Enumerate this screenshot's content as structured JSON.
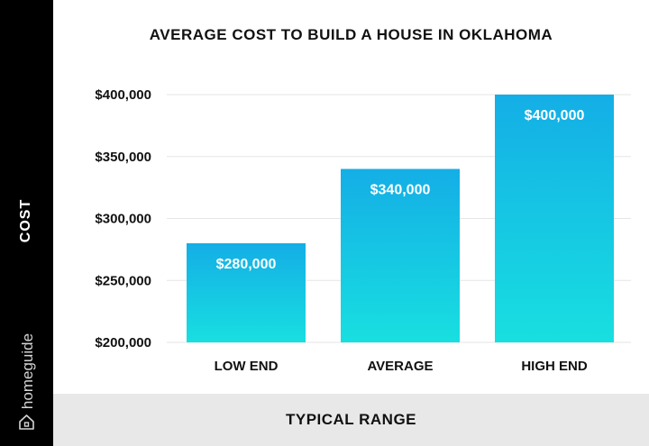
{
  "brand": {
    "name": "homeguide",
    "icon": "house-icon"
  },
  "colors": {
    "bar_top": "#14aee6",
    "bar_bottom": "#18dfe0",
    "sidebar": "#000000",
    "footer": "#e8e8e8"
  },
  "chart_data": {
    "type": "bar",
    "title": "AVERAGE COST TO BUILD A HOUSE IN OKLAHOMA",
    "xlabel": "TYPICAL RANGE",
    "ylabel": "COST",
    "categories": [
      "LOW END",
      "AVERAGE",
      "HIGH END"
    ],
    "values": [
      280000,
      340000,
      400000
    ],
    "value_labels": [
      "$280,000",
      "$340,000",
      "$400,000"
    ],
    "yticks": [
      200000,
      250000,
      300000,
      350000,
      400000
    ],
    "ytick_labels": [
      "$200,000",
      "$250,000",
      "$300,000",
      "$350,000",
      "$400,000"
    ],
    "ylim": [
      200000,
      400000
    ],
    "grid": true,
    "legend": "none"
  }
}
